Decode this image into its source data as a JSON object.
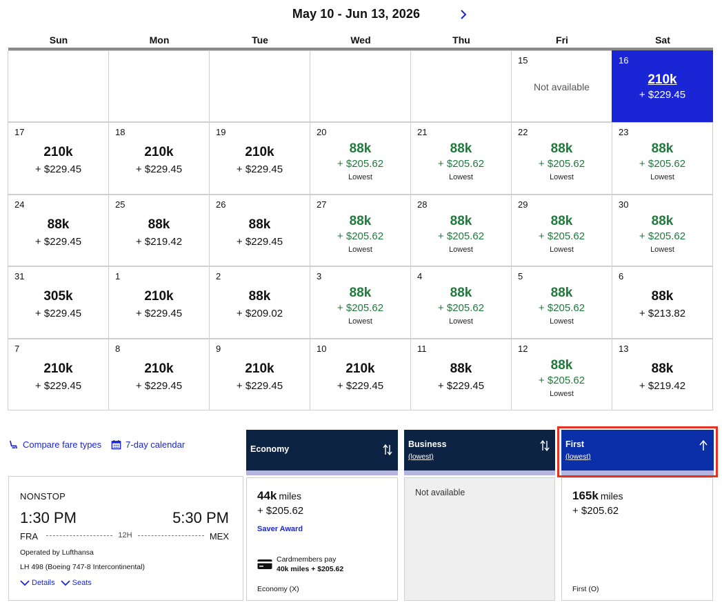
{
  "calendar": {
    "title": "May 10 - Jun 13, 2026",
    "weekdays": [
      "Sun",
      "Mon",
      "Tue",
      "Wed",
      "Thu",
      "Fri",
      "Sat"
    ],
    "lowest_label": "Lowest",
    "not_available_label": "Not available",
    "cells": [
      {
        "day": "",
        "miles": "",
        "price": ""
      },
      {
        "day": "",
        "miles": "",
        "price": ""
      },
      {
        "day": "",
        "miles": "",
        "price": ""
      },
      {
        "day": "",
        "miles": "",
        "price": ""
      },
      {
        "day": "",
        "miles": "",
        "price": ""
      },
      {
        "day": "15",
        "miles": "",
        "price": "",
        "not_available": true
      },
      {
        "day": "16",
        "miles": "210k",
        "price": "+ $229.45",
        "selected": true
      },
      {
        "day": "17",
        "miles": "210k",
        "price": "+ $229.45"
      },
      {
        "day": "18",
        "miles": "210k",
        "price": "+ $229.45"
      },
      {
        "day": "19",
        "miles": "210k",
        "price": "+ $229.45"
      },
      {
        "day": "20",
        "miles": "88k",
        "price": "+ $205.62",
        "lowest": true
      },
      {
        "day": "21",
        "miles": "88k",
        "price": "+ $205.62",
        "lowest": true
      },
      {
        "day": "22",
        "miles": "88k",
        "price": "+ $205.62",
        "lowest": true
      },
      {
        "day": "23",
        "miles": "88k",
        "price": "+ $205.62",
        "lowest": true
      },
      {
        "day": "24",
        "miles": "88k",
        "price": "+ $229.45"
      },
      {
        "day": "25",
        "miles": "88k",
        "price": "+ $219.42"
      },
      {
        "day": "26",
        "miles": "88k",
        "price": "+ $229.45"
      },
      {
        "day": "27",
        "miles": "88k",
        "price": "+ $205.62",
        "lowest": true
      },
      {
        "day": "28",
        "miles": "88k",
        "price": "+ $205.62",
        "lowest": true
      },
      {
        "day": "29",
        "miles": "88k",
        "price": "+ $205.62",
        "lowest": true
      },
      {
        "day": "30",
        "miles": "88k",
        "price": "+ $205.62",
        "lowest": true
      },
      {
        "day": "31",
        "miles": "305k",
        "price": "+ $229.45"
      },
      {
        "day": "1",
        "miles": "210k",
        "price": "+ $229.45"
      },
      {
        "day": "2",
        "miles": "88k",
        "price": "+ $209.02"
      },
      {
        "day": "3",
        "miles": "88k",
        "price": "+ $205.62",
        "lowest": true
      },
      {
        "day": "4",
        "miles": "88k",
        "price": "+ $205.62",
        "lowest": true
      },
      {
        "day": "5",
        "miles": "88k",
        "price": "+ $205.62",
        "lowest": true
      },
      {
        "day": "6",
        "miles": "88k",
        "price": "+ $213.82"
      },
      {
        "day": "7",
        "miles": "210k",
        "price": "+ $229.45"
      },
      {
        "day": "8",
        "miles": "210k",
        "price": "+ $229.45"
      },
      {
        "day": "9",
        "miles": "210k",
        "price": "+ $229.45"
      },
      {
        "day": "10",
        "miles": "210k",
        "price": "+ $229.45"
      },
      {
        "day": "11",
        "miles": "88k",
        "price": "+ $229.45"
      },
      {
        "day": "12",
        "miles": "88k",
        "price": "+ $205.62",
        "lowest": true
      },
      {
        "day": "13",
        "miles": "88k",
        "price": "+ $219.42"
      }
    ]
  },
  "links": {
    "compare": "Compare fare types",
    "seven_day": "7-day calendar"
  },
  "flight": {
    "type": "NONSTOP",
    "depart_time": "1:30 PM",
    "arrive_time": "5:30 PM",
    "from": "FRA",
    "to": "MEX",
    "duration": "12H",
    "operated_by": "Operated by Lufthansa",
    "flight_info": "LH 498 (Boeing 747-8 Intercontinental)",
    "details_label": "Details",
    "seats_label": "Seats"
  },
  "fares": {
    "economy": {
      "name": "Economy",
      "miles": "44k",
      "miles_unit": "miles",
      "price": "+ $205.62",
      "saver": "Saver Award",
      "cardmembers_label": "Cardmembers pay",
      "cardmembers_price": "40k miles + $205.62",
      "code": "Economy (X)"
    },
    "business": {
      "name": "Business",
      "sub": "(lowest)",
      "not_available": "Not available"
    },
    "first": {
      "name": "First",
      "sub": "(lowest)",
      "miles": "165k",
      "miles_unit": "miles",
      "price": "+ $205.62",
      "code": "First (O)"
    }
  },
  "colors": {
    "selected": "#1a26d6",
    "lowest_green": "#1e7a3a",
    "fare_header_navy": "#0c2344",
    "first_header_blue": "#0b2fa8",
    "highlight_red": "#e23222"
  }
}
